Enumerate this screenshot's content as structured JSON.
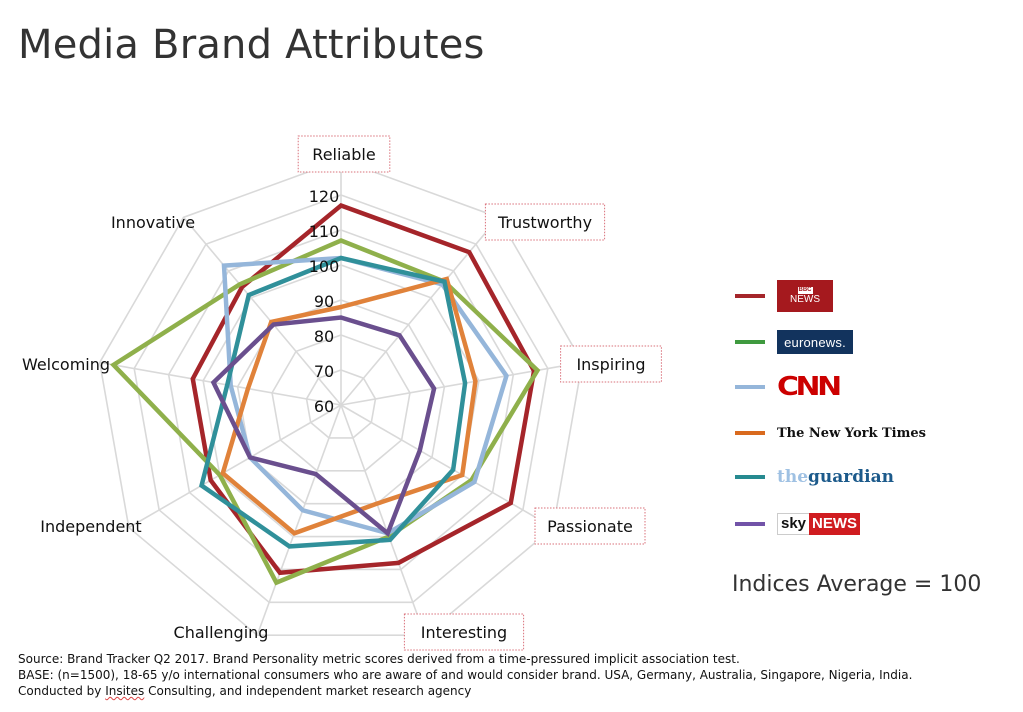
{
  "title": "Media Brand Attributes",
  "chart_data": {
    "type": "radar",
    "axes": [
      "Reliable",
      "Trustworthy",
      "Inspiring",
      "Passionate",
      "Interesting",
      "Challenging",
      "Independent",
      "Welcoming",
      "Innovative"
    ],
    "highlighted_axes": [
      "Reliable",
      "Trustworthy",
      "Inspiring",
      "Passionate",
      "Interesting"
    ],
    "radial_ticks": [
      60,
      70,
      80,
      90,
      100,
      110,
      120
    ],
    "range": [
      60,
      130
    ],
    "series": [
      {
        "name": "BBC News",
        "color": "#a5252a",
        "values": [
          117,
          117,
          116,
          116,
          108,
          111,
          103,
          103,
          104
        ]
      },
      {
        "name": "euronews",
        "color": "#8fb04b",
        "values": [
          107,
          106,
          117,
          103,
          100,
          114,
          100,
          126,
          105
        ]
      },
      {
        "name": "CNN",
        "color": "#95b6da",
        "values": [
          102,
          105,
          108,
          104,
          99,
          92,
          90,
          92,
          112
        ]
      },
      {
        "name": "The New York Times",
        "color": "#e0823a",
        "values": [
          88,
          107,
          99,
          100,
          90,
          99,
          99,
          87,
          91
        ]
      },
      {
        "name": "The Guardian",
        "color": "#30909a",
        "values": [
          102,
          106,
          96,
          97,
          101,
          103,
          106,
          93,
          101
        ]
      },
      {
        "name": "Sky News",
        "color": "#6a4f8e",
        "values": [
          85,
          86,
          87,
          86,
          99,
          81,
          90,
          97,
          90
        ]
      }
    ]
  },
  "legend": [
    {
      "color": "#a5252a",
      "logo": "bbc-news-logo",
      "text_top": "BBC",
      "text_bottom": "NEWS"
    },
    {
      "color": "#3f9a3f",
      "logo": "euronews-logo",
      "text": "euronews."
    },
    {
      "color": "#95b6da",
      "logo": "cnn-logo",
      "text": "CNN"
    },
    {
      "color": "#d96a1e",
      "logo": "nyt-logo",
      "text": "The New York Times"
    },
    {
      "color": "#268a90",
      "logo": "guardian-logo",
      "text_a": "the",
      "text_b": "guardian"
    },
    {
      "color": "#7253a8",
      "logo": "sky-news-logo",
      "text_a": "sky",
      "text_b": "NEWS"
    }
  ],
  "indices_note": "Indices Average = 100",
  "footer": {
    "line1": "Source: Brand Tracker Q2 2017. Brand Personality metric scores derived from a time-pressured implicit association test.",
    "line2": "BASE: (n=1500), 18-65 y/o international consumers who are aware of and would consider brand. USA, Germany, Australia, Singapore, Nigeria, India.",
    "line3_pre": "Conducted by ",
    "line3_brand": "Insites",
    "line3_post": " Consulting, and independent market research agency"
  }
}
